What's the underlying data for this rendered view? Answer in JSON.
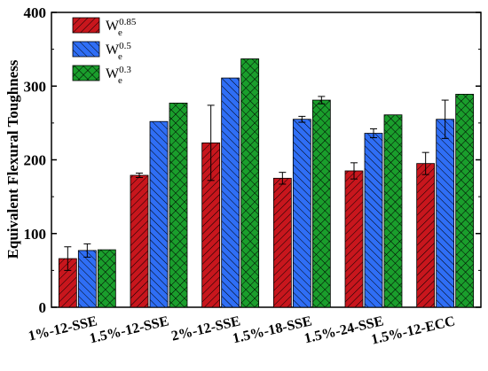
{
  "chart_data": {
    "type": "bar",
    "title": "",
    "xlabel": "",
    "ylabel": "Equivalent Flexural Toughness",
    "ylim": [
      0,
      400
    ],
    "yticks": [
      0,
      100,
      200,
      300,
      400
    ],
    "categories": [
      "1%-12-SSE",
      "1.5%-12-SSE",
      "2%-12-SSE",
      "1.5%-18-SSE",
      "1.5%-24-SSE",
      "1.5%-12-ECC"
    ],
    "series": [
      {
        "name": "We0.85",
        "legend_main": "W",
        "legend_sub": "e",
        "legend_sup": "0.85",
        "color": "#c8161d",
        "hatch": "diagonal-down",
        "values": [
          66,
          179,
          223,
          175,
          185,
          195
        ],
        "errors": [
          16,
          3,
          51,
          8,
          11,
          15
        ]
      },
      {
        "name": "We0.5",
        "legend_main": "W",
        "legend_sub": "e",
        "legend_sup": "0.5",
        "color": "#2f6ef5",
        "hatch": "diagonal-up",
        "values": [
          77,
          252,
          311,
          255,
          236,
          255
        ],
        "errors": [
          9,
          0,
          0,
          4,
          6,
          26
        ]
      },
      {
        "name": "We0.3",
        "legend_main": "W",
        "legend_sub": "e",
        "legend_sup": "0.3",
        "color": "#1a9e2c",
        "hatch": "crosshatch",
        "values": [
          78,
          277,
          337,
          281,
          261,
          289
        ],
        "errors": [
          0,
          0,
          0,
          5,
          0,
          0
        ]
      }
    ],
    "grid": false,
    "legend_position": "top-left"
  }
}
